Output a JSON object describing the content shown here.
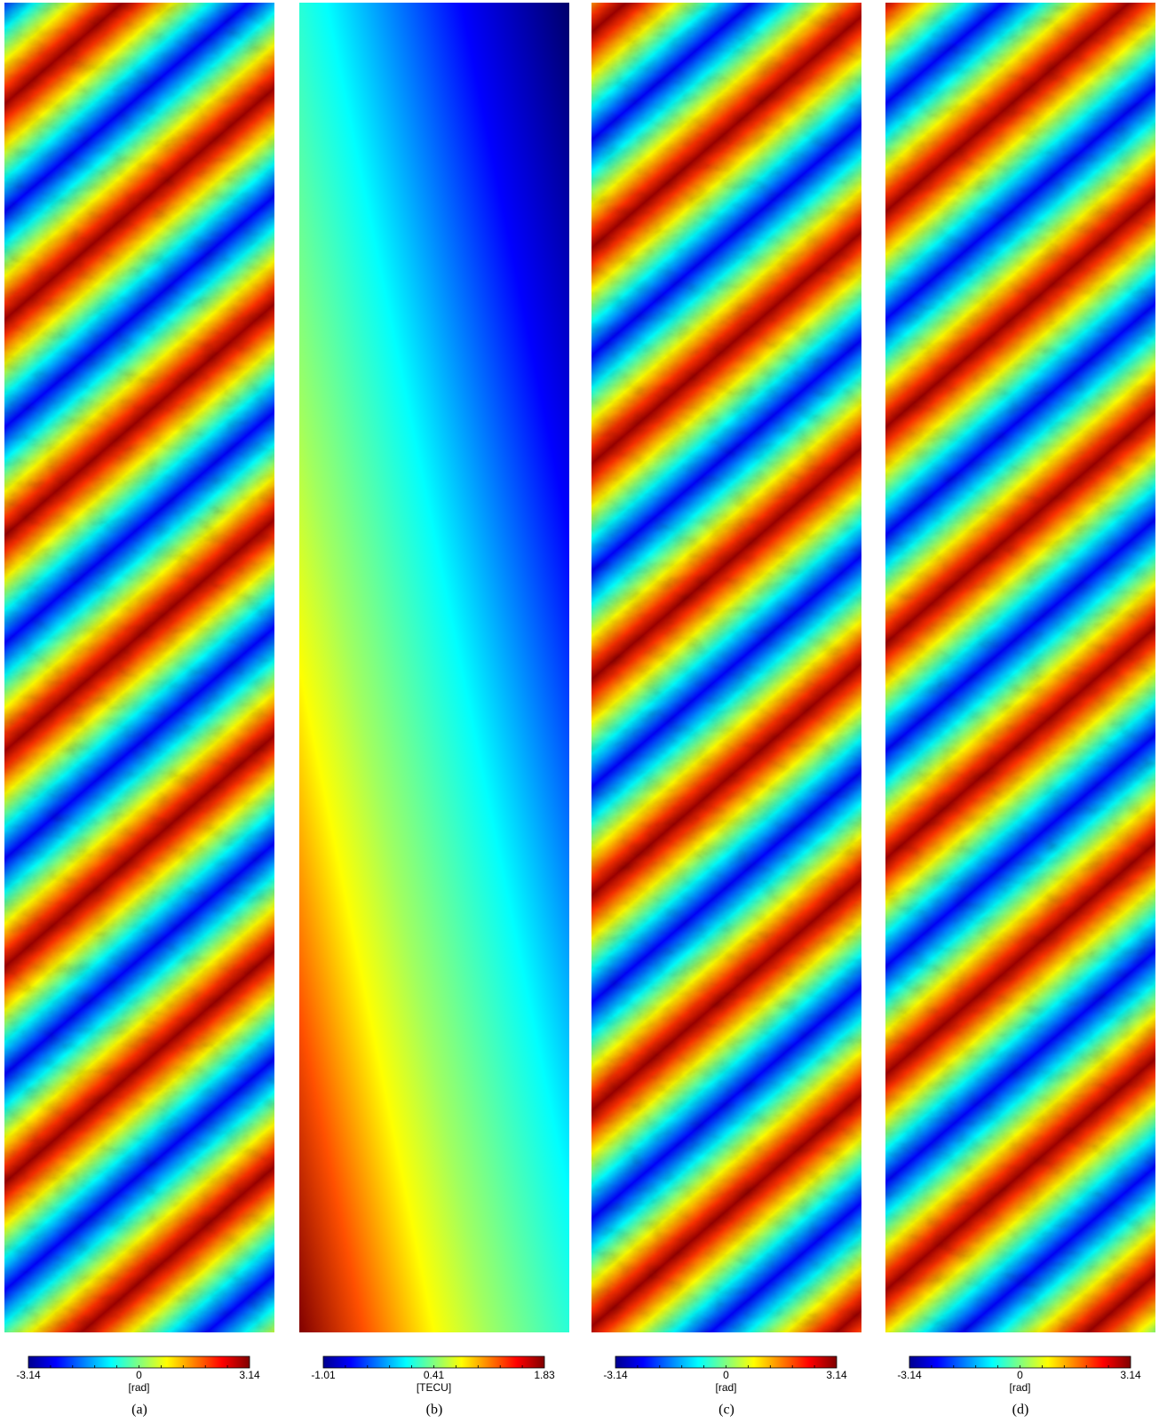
{
  "panels": [
    {
      "colorbar": {
        "ticks": [
          -3.14,
          0,
          3.14
        ],
        "unit": "[rad]"
      },
      "caption": "(a)"
    },
    {
      "colorbar": {
        "ticks": [
          -1.01,
          0.41,
          1.83
        ],
        "unit": "[TECU]"
      },
      "caption": "(b)"
    },
    {
      "colorbar": {
        "ticks": [
          -3.14,
          0,
          3.14
        ],
        "unit": "[rad]"
      },
      "caption": "(c)"
    },
    {
      "colorbar": {
        "ticks": [
          -3.14,
          0,
          3.14
        ],
        "unit": "[rad]"
      },
      "caption": "(d)"
    }
  ]
}
